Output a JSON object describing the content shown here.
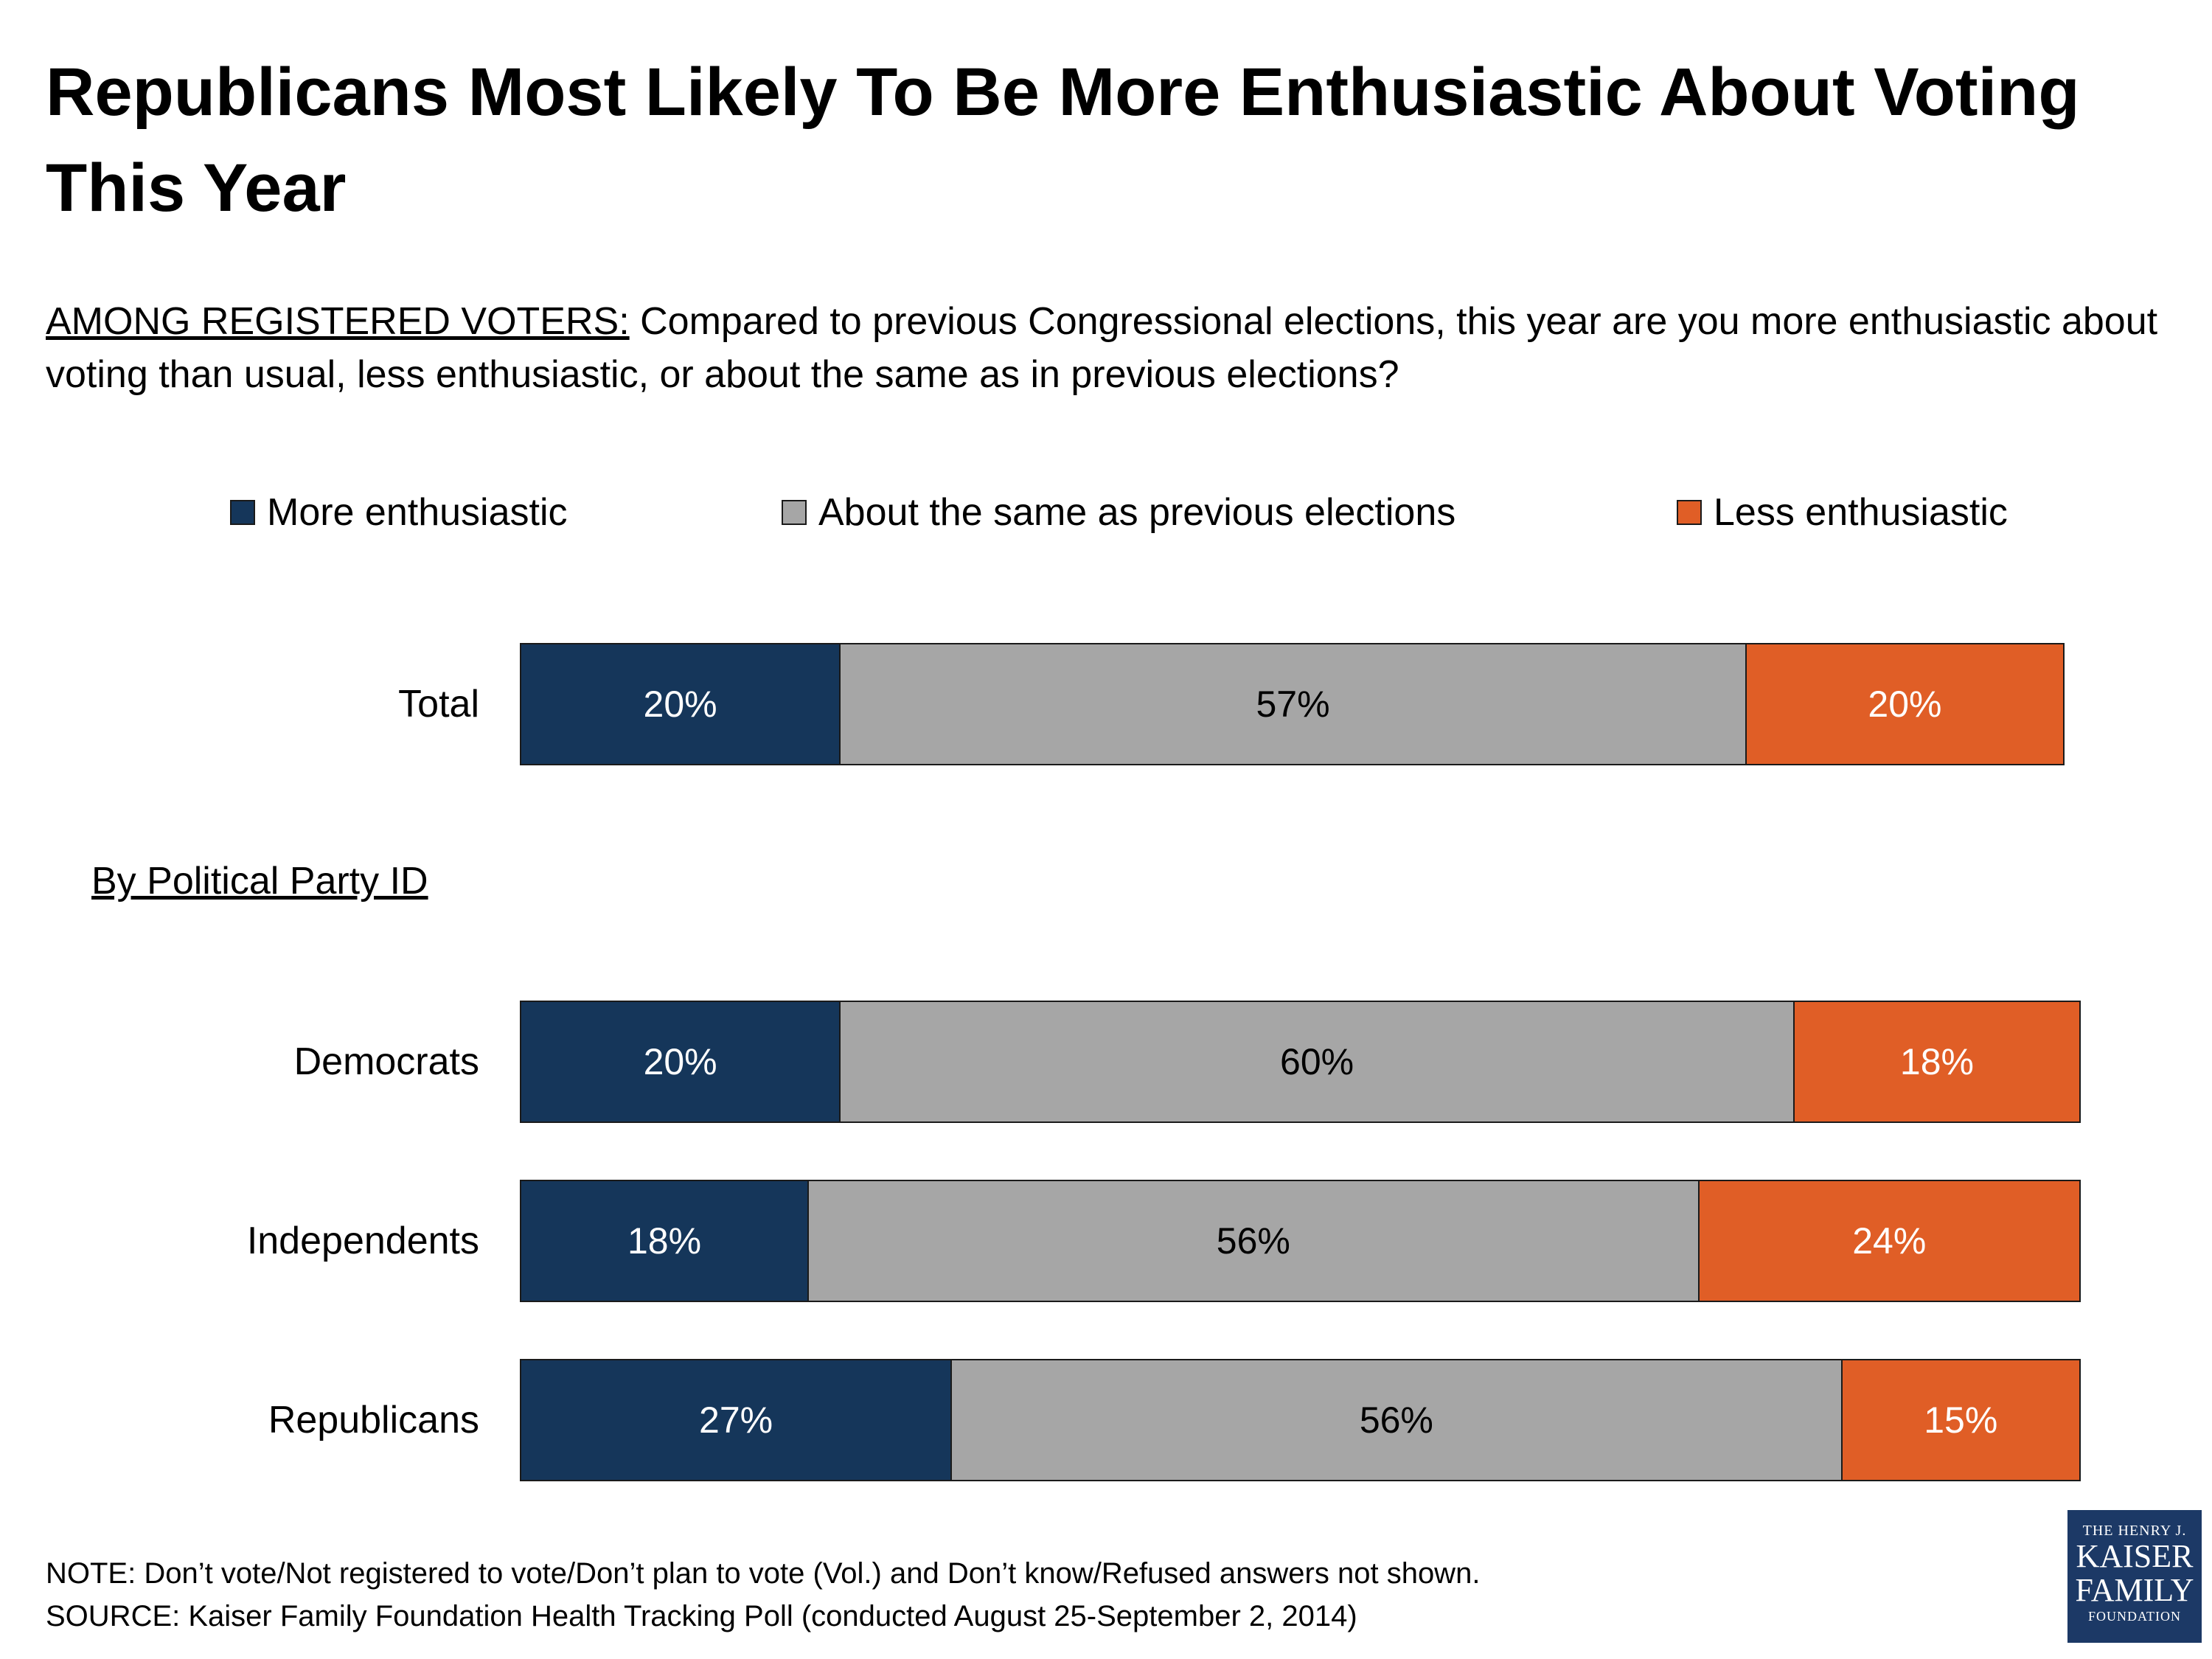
{
  "title": "Republicans Most Likely To Be More Enthusiastic About Voting This Year",
  "question": {
    "lead": "AMONG REGISTERED VOTERS:",
    "text": " Compared to previous Congressional elections, this year are you more enthusiastic about voting than usual, less enthusiastic, or about the same as in previous elections?"
  },
  "section_label": "By Political Party ID",
  "note": "NOTE: Don’t vote/Not registered to vote/Don’t plan to vote (Vol.) and Don’t know/Refused answers not shown.",
  "source": "SOURCE: Kaiser Family Foundation Health Tracking Poll (conducted August 25-September 2, 2014)",
  "logo": {
    "line1": "THE HENRY J.",
    "line2": "KAISER",
    "line3": "FAMILY",
    "line4": "FOUNDATION"
  },
  "colors": {
    "more": "#15365a",
    "same": "#a6a6a6",
    "less": "#e05e26"
  },
  "chart_data": {
    "type": "bar",
    "orientation": "horizontal",
    "stacked": true,
    "categories": [
      "Total",
      "Democrats",
      "Independents",
      "Republicans"
    ],
    "series": [
      {
        "name": "More enthusiastic",
        "values": [
          20,
          20,
          18,
          27
        ],
        "labels": [
          "20%",
          "20%",
          "18%",
          "27%"
        ]
      },
      {
        "name": "About the same as previous elections",
        "values": [
          57,
          60,
          56,
          56
        ],
        "labels": [
          "57%",
          "60%",
          "56%",
          "56%"
        ]
      },
      {
        "name": "Less enthusiastic",
        "values": [
          20,
          18,
          24,
          15
        ],
        "labels": [
          "20%",
          "18%",
          "24%",
          "15%"
        ]
      }
    ],
    "xlim": [
      0,
      100
    ],
    "grid": false,
    "legend": "top"
  }
}
